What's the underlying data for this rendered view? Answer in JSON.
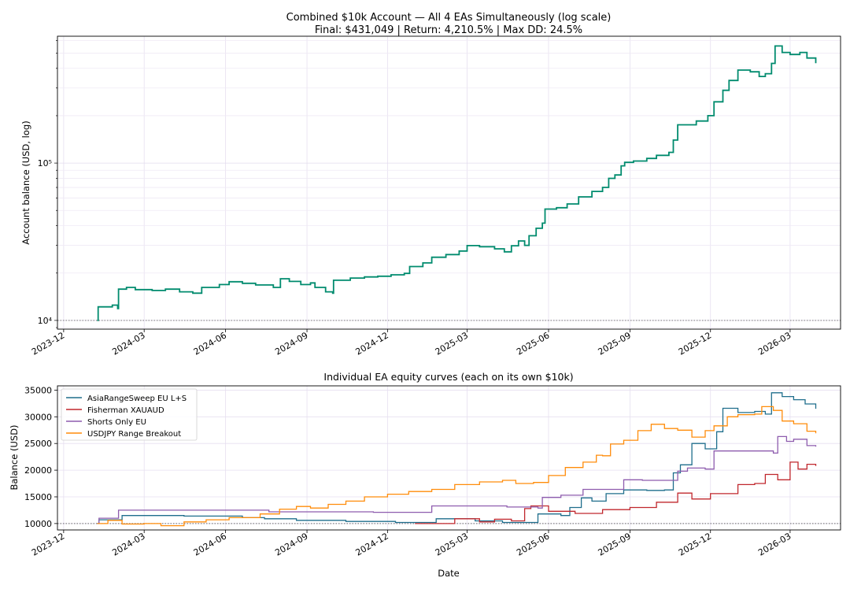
{
  "chart_data": [
    {
      "type": "line",
      "title_line1": "Combined $10k Account — All 4 EAs Simultaneously (log scale)",
      "title_line2": "Final: $431,049  |  Return: 4,210.5%  |  Max DD: 24.5%",
      "xlabel": "",
      "ylabel": "Account balance (USD, log)",
      "yscale": "log",
      "ylim": [
        8800,
        640000
      ],
      "xlim": [
        "2023-11-24",
        "2026-04-27"
      ],
      "x_ticks": [
        "2023-12",
        "2024-03",
        "2024-06",
        "2024-09",
        "2024-12",
        "2025-03",
        "2025-06",
        "2025-09",
        "2025-12",
        "2026-03"
      ],
      "y_ticks": [
        {
          "value": 10000,
          "label": "10⁴"
        },
        {
          "value": 100000,
          "label": "10⁵"
        }
      ],
      "grid": true,
      "reference_line": 10000,
      "series": [
        {
          "color": "#008b6e",
          "points": [
            [
              "2024-01-08",
              10000
            ],
            [
              "2024-01-09",
              12200
            ],
            [
              "2024-01-25",
              12500
            ],
            [
              "2024-01-31",
              11900
            ],
            [
              "2024-02-01",
              15800
            ],
            [
              "2024-02-10",
              16200
            ],
            [
              "2024-02-20",
              15700
            ],
            [
              "2024-03-10",
              15500
            ],
            [
              "2024-03-25",
              15800
            ],
            [
              "2024-04-10",
              15200
            ],
            [
              "2024-04-25",
              14900
            ],
            [
              "2024-05-05",
              16200
            ],
            [
              "2024-05-25",
              16900
            ],
            [
              "2024-06-05",
              17600
            ],
            [
              "2024-06-20",
              17200
            ],
            [
              "2024-07-05",
              16800
            ],
            [
              "2024-07-25",
              16200
            ],
            [
              "2024-08-02",
              18400
            ],
            [
              "2024-08-12",
              17700
            ],
            [
              "2024-08-25",
              16900
            ],
            [
              "2024-09-05",
              17300
            ],
            [
              "2024-09-10",
              16200
            ],
            [
              "2024-09-22",
              15200
            ],
            [
              "2024-09-30",
              14900
            ],
            [
              "2024-10-01",
              18000
            ],
            [
              "2024-10-20",
              18600
            ],
            [
              "2024-11-05",
              18900
            ],
            [
              "2024-11-20",
              19100
            ],
            [
              "2024-12-05",
              19500
            ],
            [
              "2024-12-20",
              19900
            ],
            [
              "2024-12-26",
              22000
            ],
            [
              "2025-01-10",
              23200
            ],
            [
              "2025-01-20",
              25200
            ],
            [
              "2025-02-05",
              26200
            ],
            [
              "2025-02-20",
              27600
            ],
            [
              "2025-03-01",
              29900
            ],
            [
              "2025-03-15",
              29400
            ],
            [
              "2025-04-01",
              28500
            ],
            [
              "2025-04-12",
              27300
            ],
            [
              "2025-04-20",
              29800
            ],
            [
              "2025-04-28",
              32000
            ],
            [
              "2025-05-05",
              30000
            ],
            [
              "2025-05-10",
              34500
            ],
            [
              "2025-05-18",
              38500
            ],
            [
              "2025-05-25",
              41500
            ],
            [
              "2025-05-28",
              51000
            ],
            [
              "2025-06-10",
              52000
            ],
            [
              "2025-06-22",
              55000
            ],
            [
              "2025-07-05",
              61000
            ],
            [
              "2025-07-20",
              66000
            ],
            [
              "2025-08-01",
              70000
            ],
            [
              "2025-08-08",
              80000
            ],
            [
              "2025-08-15",
              84000
            ],
            [
              "2025-08-22",
              96000
            ],
            [
              "2025-08-26",
              101000
            ],
            [
              "2025-09-05",
              103000
            ],
            [
              "2025-09-20",
              107000
            ],
            [
              "2025-10-01",
              112000
            ],
            [
              "2025-10-15",
              117000
            ],
            [
              "2025-10-20",
              140000
            ],
            [
              "2025-10-25",
              175000
            ],
            [
              "2025-11-05",
              175000
            ],
            [
              "2025-11-15",
              185000
            ],
            [
              "2025-11-28",
              200000
            ],
            [
              "2025-12-05",
              245000
            ],
            [
              "2025-12-15",
              290000
            ],
            [
              "2025-12-22",
              335000
            ],
            [
              "2026-01-01",
              390000
            ],
            [
              "2026-01-15",
              380000
            ],
            [
              "2026-01-25",
              355000
            ],
            [
              "2026-02-01",
              370000
            ],
            [
              "2026-02-08",
              430000
            ],
            [
              "2026-02-12",
              555000
            ],
            [
              "2026-02-20",
              505000
            ],
            [
              "2026-03-01",
              490000
            ],
            [
              "2026-03-12",
              505000
            ],
            [
              "2026-03-20",
              465000
            ],
            [
              "2026-03-30",
              431049
            ]
          ]
        }
      ]
    },
    {
      "type": "line",
      "title": "Individual EA equity curves (each on its own $10k)",
      "xlabel": "Date",
      "ylabel": "Balance (USD)",
      "ylim": [
        8800,
        35800
      ],
      "xlim": [
        "2023-11-24",
        "2026-04-27"
      ],
      "x_ticks": [
        "2023-12",
        "2024-03",
        "2024-06",
        "2024-09",
        "2024-12",
        "2025-03",
        "2025-06",
        "2025-09",
        "2025-12",
        "2026-03"
      ],
      "y_ticks": [
        10000,
        15000,
        20000,
        25000,
        30000,
        35000
      ],
      "grid": true,
      "reference_line": 10000,
      "legend_position": "top-left",
      "series": [
        {
          "name": "AsiaRangeSweep EU L+S",
          "color": "#1f6e8c",
          "points": [
            [
              "2024-01-08",
              10000
            ],
            [
              "2024-01-10",
              10700
            ],
            [
              "2024-02-05",
              11500
            ],
            [
              "2024-04-15",
              11400
            ],
            [
              "2024-06-20",
              11100
            ],
            [
              "2024-07-15",
              10900
            ],
            [
              "2024-08-20",
              10600
            ],
            [
              "2024-10-15",
              10400
            ],
            [
              "2024-12-10",
              10200
            ],
            [
              "2025-01-25",
              10900
            ],
            [
              "2025-03-10",
              10500
            ],
            [
              "2025-04-10",
              10200
            ],
            [
              "2025-05-20",
              11800
            ],
            [
              "2025-06-15",
              11500
            ],
            [
              "2025-06-25",
              13000
            ],
            [
              "2025-07-08",
              14800
            ],
            [
              "2025-07-20",
              14200
            ],
            [
              "2025-08-05",
              15600
            ],
            [
              "2025-08-25",
              16300
            ],
            [
              "2025-09-20",
              16200
            ],
            [
              "2025-10-10",
              16300
            ],
            [
              "2025-10-20",
              19500
            ],
            [
              "2025-10-28",
              21000
            ],
            [
              "2025-11-10",
              25000
            ],
            [
              "2025-11-25",
              24000
            ],
            [
              "2025-12-08",
              27200
            ],
            [
              "2025-12-15",
              31600
            ],
            [
              "2026-01-01",
              30800
            ],
            [
              "2026-01-20",
              31000
            ],
            [
              "2026-02-01",
              30500
            ],
            [
              "2026-02-08",
              34500
            ],
            [
              "2026-02-20",
              33800
            ],
            [
              "2026-03-05",
              33200
            ],
            [
              "2026-03-18",
              32400
            ],
            [
              "2026-03-30",
              31500
            ]
          ]
        },
        {
          "name": "Fisherman XAUAUD",
          "color": "#c0272d",
          "points": [
            [
              "2025-01-01",
              10000
            ],
            [
              "2025-02-01",
              10000
            ],
            [
              "2025-02-15",
              10900
            ],
            [
              "2025-03-15",
              10300
            ],
            [
              "2025-04-01",
              10800
            ],
            [
              "2025-04-20",
              10500
            ],
            [
              "2025-05-05",
              12800
            ],
            [
              "2025-05-12",
              13300
            ],
            [
              "2025-06-01",
              12300
            ],
            [
              "2025-07-01",
              11900
            ],
            [
              "2025-08-01",
              12600
            ],
            [
              "2025-09-01",
              13000
            ],
            [
              "2025-10-01",
              14000
            ],
            [
              "2025-10-25",
              15700
            ],
            [
              "2025-11-10",
              14600
            ],
            [
              "2025-12-01",
              15600
            ],
            [
              "2026-01-01",
              17300
            ],
            [
              "2026-01-20",
              17500
            ],
            [
              "2026-02-01",
              19200
            ],
            [
              "2026-02-15",
              18200
            ],
            [
              "2026-03-01",
              21500
            ],
            [
              "2026-03-10",
              20200
            ],
            [
              "2026-03-20",
              21100
            ],
            [
              "2026-03-30",
              20800
            ]
          ]
        },
        {
          "name": "Shorts Only EU",
          "color": "#8e5cae",
          "points": [
            [
              "2024-01-08",
              10000
            ],
            [
              "2024-01-10",
              11000
            ],
            [
              "2024-02-01",
              12500
            ],
            [
              "2024-05-01",
              12500
            ],
            [
              "2024-07-15",
              12500
            ],
            [
              "2024-07-20",
              12200
            ],
            [
              "2024-10-01",
              12200
            ],
            [
              "2024-11-15",
              12100
            ],
            [
              "2025-01-10",
              12100
            ],
            [
              "2025-01-20",
              13300
            ],
            [
              "2025-03-01",
              13300
            ],
            [
              "2025-04-15",
              13100
            ],
            [
              "2025-05-20",
              12900
            ],
            [
              "2025-05-25",
              14900
            ],
            [
              "2025-06-15",
              15300
            ],
            [
              "2025-07-10",
              16400
            ],
            [
              "2025-08-05",
              16400
            ],
            [
              "2025-08-25",
              18200
            ],
            [
              "2025-09-15",
              18100
            ],
            [
              "2025-10-15",
              18100
            ],
            [
              "2025-10-25",
              19800
            ],
            [
              "2025-11-05",
              20400
            ],
            [
              "2025-11-25",
              20200
            ],
            [
              "2025-12-05",
              23600
            ],
            [
              "2026-01-10",
              23600
            ],
            [
              "2026-02-10",
              23200
            ],
            [
              "2026-02-15",
              26300
            ],
            [
              "2026-02-25",
              25400
            ],
            [
              "2026-03-05",
              25800
            ],
            [
              "2026-03-20",
              24600
            ],
            [
              "2026-03-30",
              24400
            ]
          ]
        },
        {
          "name": "USDJPY Range Breakout",
          "color": "#ff8c0a",
          "points": [
            [
              "2024-01-08",
              10000
            ],
            [
              "2024-01-20",
              10600
            ],
            [
              "2024-02-05",
              9900
            ],
            [
              "2024-03-01",
              10000
            ],
            [
              "2024-03-20",
              9600
            ],
            [
              "2024-04-15",
              10300
            ],
            [
              "2024-05-10",
              10700
            ],
            [
              "2024-06-05",
              11100
            ],
            [
              "2024-07-10",
              11800
            ],
            [
              "2024-08-01",
              12700
            ],
            [
              "2024-08-20",
              13200
            ],
            [
              "2024-09-05",
              12900
            ],
            [
              "2024-09-25",
              13600
            ],
            [
              "2024-10-15",
              14200
            ],
            [
              "2024-11-05",
              15000
            ],
            [
              "2024-12-01",
              15500
            ],
            [
              "2024-12-25",
              16000
            ],
            [
              "2025-01-20",
              16400
            ],
            [
              "2025-02-15",
              17300
            ],
            [
              "2025-03-15",
              17800
            ],
            [
              "2025-04-10",
              18100
            ],
            [
              "2025-04-25",
              17500
            ],
            [
              "2025-05-15",
              17700
            ],
            [
              "2025-06-01",
              19000
            ],
            [
              "2025-06-20",
              20500
            ],
            [
              "2025-07-10",
              21500
            ],
            [
              "2025-07-25",
              22800
            ],
            [
              "2025-08-01",
              22700
            ],
            [
              "2025-08-10",
              24900
            ],
            [
              "2025-08-25",
              25600
            ],
            [
              "2025-09-10",
              27400
            ],
            [
              "2025-09-25",
              28600
            ],
            [
              "2025-10-10",
              27800
            ],
            [
              "2025-10-25",
              27500
            ],
            [
              "2025-11-10",
              26200
            ],
            [
              "2025-11-25",
              27400
            ],
            [
              "2025-12-05",
              28300
            ],
            [
              "2025-12-20",
              30000
            ],
            [
              "2026-01-01",
              30400
            ],
            [
              "2026-01-20",
              30500
            ],
            [
              "2026-01-28",
              31900
            ],
            [
              "2026-02-10",
              31200
            ],
            [
              "2026-02-20",
              29200
            ],
            [
              "2026-03-05",
              28700
            ],
            [
              "2026-03-20",
              27300
            ],
            [
              "2026-03-30",
              26900
            ]
          ]
        }
      ]
    }
  ]
}
